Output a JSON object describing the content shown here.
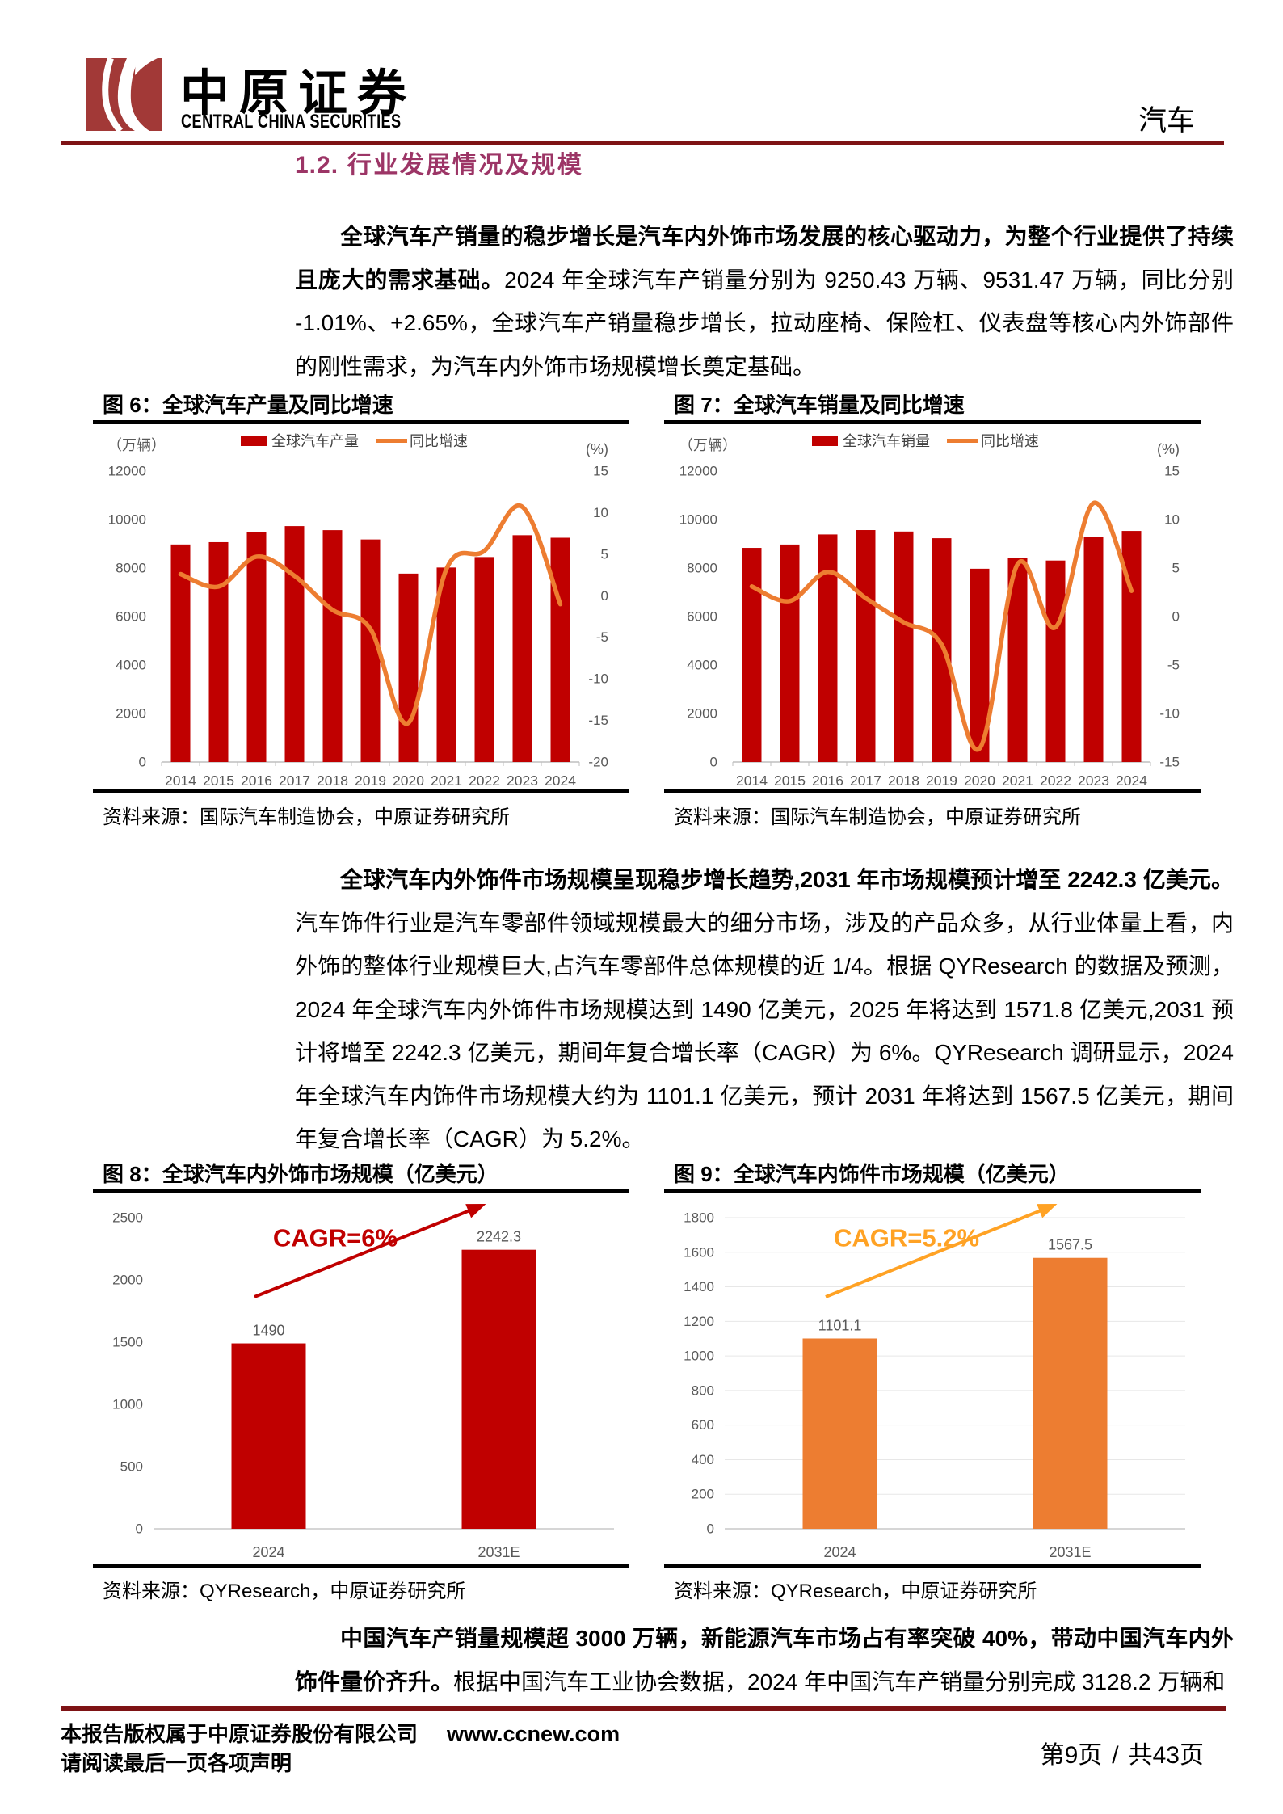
{
  "header": {
    "brand_cn": "中原证券",
    "brand_en": "CENTRAL CHINA SECURITIES",
    "industry_tag": "汽车",
    "rule_color": "#7E1315",
    "logo_color": "#A23937"
  },
  "section": {
    "number": "1.2.",
    "title": "行业发展情况及规模",
    "color": "#9C3566"
  },
  "paragraphs": [
    {
      "bold": "全球汽车产销量的稳步增长是汽车内外饰市场发展的核心驱动力，为整个行业提供了持续且庞大的需求基础。",
      "normal": "2024 年全球汽车产销量分别为 9250.43 万辆、9531.47 万辆，同比分别-1.01%、+2.65%，全球汽车产销量稳步增长，拉动座椅、保险杠、仪表盘等核心内外饰部件的刚性需求，为汽车内外饰市场规模增长奠定基础。"
    },
    {
      "bold": "全球汽车内外饰件市场规模呈现稳步增长趋势,2031 年市场规模预计增至 2242.3 亿美元。",
      "normal": "汽车饰件行业是汽车零部件领域规模最大的细分市场，涉及的产品众多，从行业体量上看，内外饰的整体行业规模巨大,占汽车零部件总体规模的近 1/4。根据 QYResearch 的数据及预测，2024 年全球汽车内外饰件市场规模达到 1490 亿美元，2025 年将达到 1571.8 亿美元,2031 预计将增至 2242.3 亿美元，期间年复合增长率（CAGR）为 6%。QYResearch 调研显示，2024 年全球汽车内饰件市场规模大约为 1101.1 亿美元，预计 2031 年将达到 1567.5 亿美元，期间年复合增长率（CAGR）为 5.2%。"
    },
    {
      "bold": "中国汽车产销量规模超 3000 万辆，新能源汽车市场占有率突破 40%，带动中国汽车内外饰件量价齐升。",
      "normal": "根据中国汽车工业协会数据，2024 年中国汽车产销量分别完成 3128.2 万辆和"
    }
  ],
  "chart_data": [
    {
      "id": "fig6",
      "figure_label": "图 6：",
      "title": "全球汽车产量及同比增速",
      "type": "bar+line",
      "unit_left": "（万辆）",
      "unit_right": "(%)",
      "categories": [
        "2014",
        "2015",
        "2016",
        "2017",
        "2018",
        "2019",
        "2020",
        "2021",
        "2022",
        "2023",
        "2024"
      ],
      "series": [
        {
          "name": "全球汽车产量",
          "type": "bar",
          "axis": "left",
          "color": "#C00000",
          "values": [
            8972,
            9068,
            9498,
            9730,
            9563,
            9179,
            7771,
            8021,
            8454,
            9355,
            9250
          ]
        },
        {
          "name": "同比增速",
          "type": "line",
          "axis": "right",
          "color": "#ED7D31",
          "values": [
            2.6,
            1.1,
            4.7,
            2.4,
            -1.7,
            -4.0,
            -15.3,
            3.2,
            5.4,
            10.7,
            -1.01
          ]
        }
      ],
      "left_axis": {
        "min": 0,
        "max": 12000,
        "step": 2000
      },
      "right_axis": {
        "min": -20,
        "max": 15,
        "step": 5
      },
      "legend_position": "top",
      "grid": false,
      "source": "资料来源：国际汽车制造协会，中原证券研究所"
    },
    {
      "id": "fig7",
      "figure_label": "图 7：",
      "title": "全球汽车销量及同比增速",
      "type": "bar+line",
      "unit_left": "（万辆）",
      "unit_right": "(%)",
      "categories": [
        "2014",
        "2015",
        "2016",
        "2017",
        "2018",
        "2019",
        "2020",
        "2021",
        "2022",
        "2023",
        "2024"
      ],
      "series": [
        {
          "name": "全球汽车销量",
          "type": "bar",
          "axis": "left",
          "color": "#C00000",
          "values": [
            8832,
            8970,
            9386,
            9566,
            9506,
            9230,
            7971,
            8400,
            8310,
            9285,
            9531
          ]
        },
        {
          "name": "同比增速",
          "type": "line",
          "axis": "right",
          "color": "#ED7D31",
          "values": [
            3.1,
            1.6,
            4.6,
            1.9,
            -0.6,
            -2.9,
            -13.6,
            5.4,
            -1.1,
            11.7,
            2.65
          ]
        }
      ],
      "left_axis": {
        "min": 0,
        "max": 12000,
        "step": 2000
      },
      "right_axis": {
        "min": -15,
        "max": 15,
        "step": 5
      },
      "legend_position": "top",
      "grid": false,
      "source": "资料来源：国际汽车制造协会，中原证券研究所"
    },
    {
      "id": "fig8",
      "figure_label": "图 8：",
      "title": "全球汽车内外饰市场规模（亿美元）",
      "type": "bar",
      "categories": [
        "2024",
        "2031E"
      ],
      "values": [
        1490,
        2242.3
      ],
      "value_labels": [
        "1490",
        "2242.3"
      ],
      "bar_color": "#C00000",
      "annotation": {
        "text": "CAGR=6%",
        "color": "#C00000"
      },
      "arrow_color": "#C00000",
      "left_axis": {
        "min": 0,
        "max": 2500,
        "step": 500
      },
      "grid": false,
      "source": "资料来源：QYResearch，中原证券研究所"
    },
    {
      "id": "fig9",
      "figure_label": "图 9：",
      "title": "全球汽车内饰件市场规模（亿美元）",
      "type": "bar",
      "categories": [
        "2024",
        "2031E"
      ],
      "values": [
        1101.1,
        1567.5
      ],
      "value_labels": [
        "1101.1",
        "1567.5"
      ],
      "bar_color": "#ED7D31",
      "annotation": {
        "text": "CAGR=5.2%",
        "color": "#FFA224"
      },
      "arrow_color": "#FFA224",
      "left_axis": {
        "min": 0,
        "max": 1800,
        "step": 200
      },
      "grid": true,
      "source": "资料来源：QYResearch，中原证券研究所"
    }
  ],
  "footer": {
    "copyright_line": "本报告版权属于中原证券股份有限公司",
    "website": "www.ccnew.com",
    "disclaimer_line": "请阅读最后一页各项声明",
    "page_current": "第9页",
    "page_separator": "/",
    "page_total": "共43页"
  },
  "colors": {
    "bar_red": "#C00000",
    "line_orange": "#ED7D31",
    "annotation_orange": "#FFA224",
    "axis_label_gray": "#595959",
    "axis_line_gray": "#BFBFBF",
    "rule_dark_red": "#7E1315",
    "heading_plum": "#9C3566"
  }
}
